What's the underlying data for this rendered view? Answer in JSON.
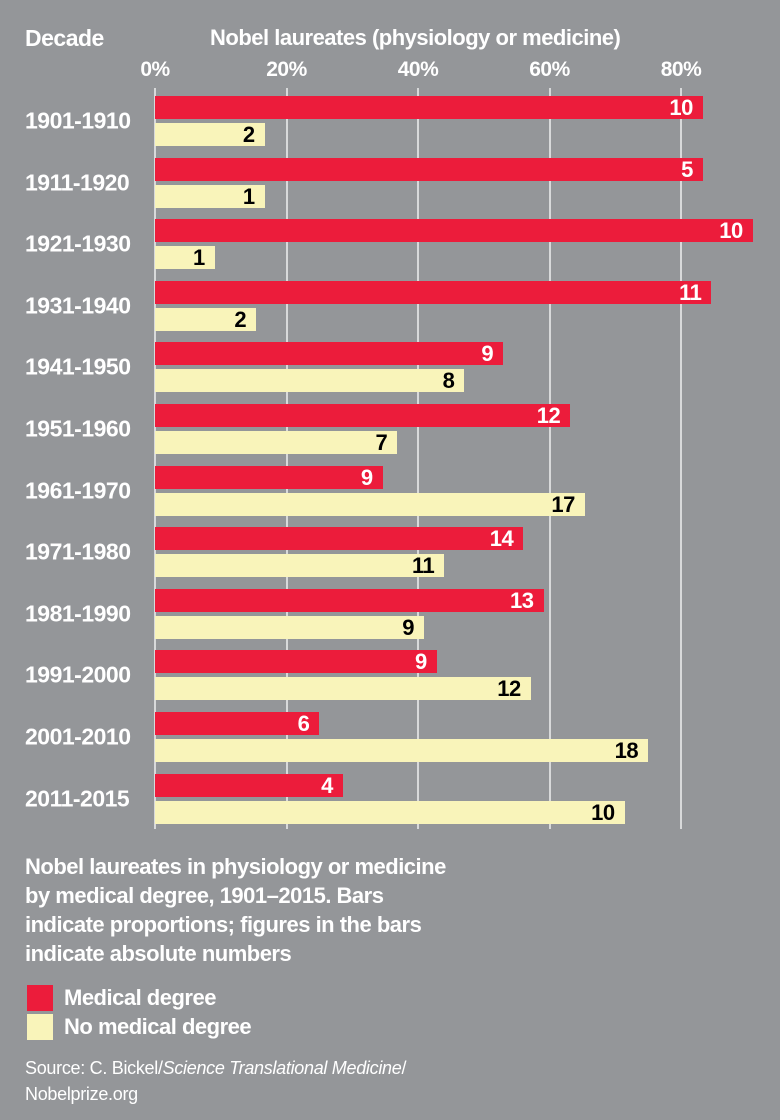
{
  "header": {
    "decade_label": "Decade",
    "title": "Nobel laureates (physiology or medicine)"
  },
  "chart_data": {
    "type": "bar",
    "orientation": "horizontal",
    "title": "Nobel laureates (physiology or medicine)",
    "categories": [
      "1901-1910",
      "1911-1920",
      "1921-1930",
      "1931-1940",
      "1941-1950",
      "1951-1960",
      "1961-1970",
      "1971-1980",
      "1981-1990",
      "1991-2000",
      "2001-2010",
      "2011-2015"
    ],
    "series": [
      {
        "name": "Medical degree",
        "color": "#ec1c3b",
        "label_color": "#ffffff",
        "values": [
          10,
          5,
          10,
          11,
          9,
          12,
          9,
          14,
          13,
          9,
          6,
          4
        ]
      },
      {
        "name": "No medical degree",
        "color": "#f9f4ba",
        "label_color": "#000000",
        "values": [
          2,
          1,
          1,
          2,
          8,
          7,
          17,
          11,
          9,
          12,
          18,
          10
        ]
      }
    ],
    "bar_length_rule": "each bar length is the series count as a percent of that decade's total; figures inside bars are absolute counts",
    "x_axis": {
      "tick_labels": [
        "0%",
        "20%",
        "40%",
        "60%",
        "80%"
      ],
      "tick_values": [
        0,
        20,
        40,
        60,
        80
      ],
      "range": [
        0,
        95
      ],
      "gridlines": true
    },
    "legend_position": "bottom-left"
  },
  "caption": {
    "lines": [
      "Nobel laureates in physiology or medicine",
      "by medical degree, 1901–2015. Bars",
      "indicate proportions; figures in the bars",
      "indicate absolute numbers"
    ]
  },
  "source": {
    "prefix": "Source: C. Bickel/",
    "journal_italic": "Science Translational Medicine",
    "suffix": "/",
    "line2": "Nobelprize.org"
  },
  "colors": {
    "background": "#949699",
    "gridline": "#d8d9da",
    "text": "#ffffff"
  }
}
